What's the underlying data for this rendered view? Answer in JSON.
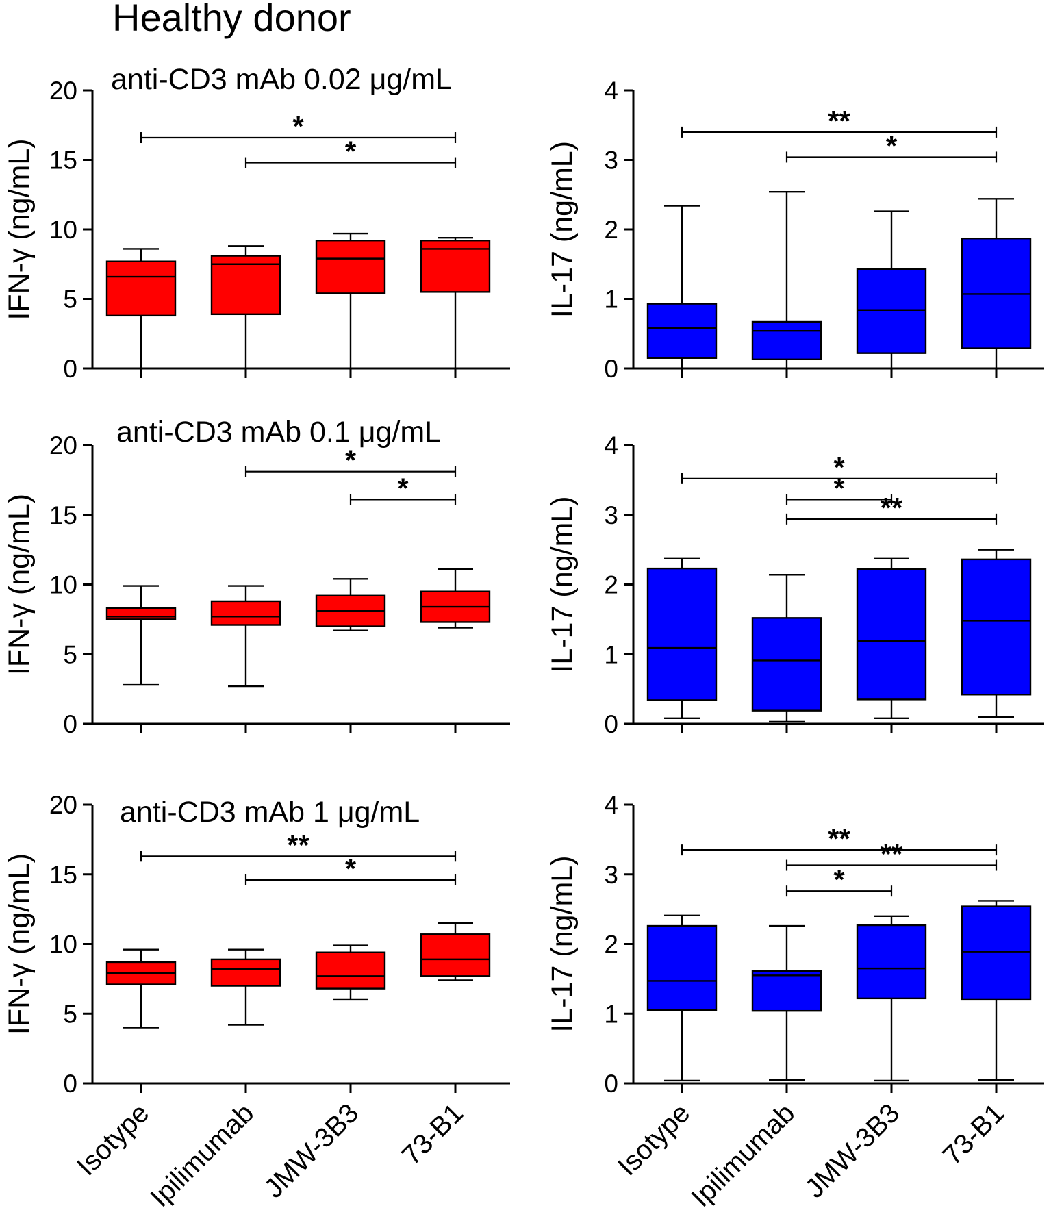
{
  "figure": {
    "title": "Healthy donor",
    "categories": [
      "Isotype",
      "Ipilimumab",
      "JMW-3B3",
      "73-B1"
    ],
    "colors": {
      "ifng": "#ff0000",
      "il17": "#0000ff",
      "stroke": "#000000"
    }
  },
  "chart_data": [
    {
      "type": "box",
      "panel": "IFN-γ at anti-CD3 0.02 µg/mL",
      "title": "anti-CD3 mAb 0.02 μg/mL",
      "ylabel": "IFN-γ (ng/mL)",
      "ylim": [
        0,
        20
      ],
      "yticks": [
        0,
        5,
        10,
        15,
        20
      ],
      "color": "#ff0000",
      "categories": [
        "Isotype",
        "Ipilimumab",
        "JMW-3B3",
        "73-B1"
      ],
      "boxes": [
        {
          "min": 0,
          "q1": 3.8,
          "median": 6.6,
          "q3": 7.7,
          "max": 8.6
        },
        {
          "min": 0,
          "q1": 3.9,
          "median": 7.5,
          "q3": 8.1,
          "max": 8.8
        },
        {
          "min": 0,
          "q1": 5.4,
          "median": 7.9,
          "q3": 9.2,
          "max": 9.7
        },
        {
          "min": 0,
          "q1": 5.5,
          "median": 8.6,
          "q3": 9.2,
          "max": 9.4
        }
      ],
      "significance": [
        {
          "from": 0,
          "to": 3,
          "y": 16.6,
          "label": "*"
        },
        {
          "from": 1,
          "to": 3,
          "y": 14.8,
          "label": "*"
        }
      ]
    },
    {
      "type": "box",
      "panel": "IL-17 at anti-CD3 0.02 µg/mL",
      "title": "",
      "ylabel": "IL-17 (ng/mL)",
      "ylim": [
        0,
        4
      ],
      "yticks": [
        0,
        1,
        2,
        3,
        4
      ],
      "color": "#0000ff",
      "categories": [
        "Isotype",
        "Ipilimumab",
        "JMW-3B3",
        "73-B1"
      ],
      "boxes": [
        {
          "min": 0,
          "q1": 0.15,
          "median": 0.58,
          "q3": 0.93,
          "max": 2.34
        },
        {
          "min": 0,
          "q1": 0.13,
          "median": 0.54,
          "q3": 0.67,
          "max": 2.54
        },
        {
          "min": 0,
          "q1": 0.22,
          "median": 0.84,
          "q3": 1.43,
          "max": 2.26
        },
        {
          "min": 0,
          "q1": 0.29,
          "median": 1.07,
          "q3": 1.87,
          "max": 2.44
        }
      ],
      "significance": [
        {
          "from": 0,
          "to": 3,
          "y": 3.4,
          "label": "**"
        },
        {
          "from": 1,
          "to": 3,
          "y": 3.04,
          "label": "*"
        }
      ]
    },
    {
      "type": "box",
      "panel": "IFN-γ at anti-CD3 0.1 µg/mL",
      "title": "anti-CD3 mAb 0.1 μg/mL",
      "ylabel": "IFN-γ (ng/mL)",
      "ylim": [
        0,
        20
      ],
      "yticks": [
        0,
        5,
        10,
        15,
        20
      ],
      "color": "#ff0000",
      "categories": [
        "Isotype",
        "Ipilimumab",
        "JMW-3B3",
        "73-B1"
      ],
      "boxes": [
        {
          "min": 2.8,
          "q1": 7.5,
          "median": 7.7,
          "q3": 8.3,
          "max": 9.9
        },
        {
          "min": 2.7,
          "q1": 7.1,
          "median": 7.7,
          "q3": 8.8,
          "max": 9.9
        },
        {
          "min": 6.7,
          "q1": 7.0,
          "median": 8.1,
          "q3": 9.2,
          "max": 10.4
        },
        {
          "min": 6.9,
          "q1": 7.3,
          "median": 8.4,
          "q3": 9.5,
          "max": 11.1
        }
      ],
      "significance": [
        {
          "from": 1,
          "to": 3,
          "y": 18.1,
          "label": "*"
        },
        {
          "from": 2,
          "to": 3,
          "y": 16.1,
          "label": "*"
        }
      ]
    },
    {
      "type": "box",
      "panel": "IL-17 at anti-CD3 0.1 µg/mL",
      "title": "",
      "ylabel": "IL-17 (ng/mL)",
      "ylim": [
        0,
        4
      ],
      "yticks": [
        0,
        1,
        2,
        3,
        4
      ],
      "color": "#0000ff",
      "categories": [
        "Isotype",
        "Ipilimumab",
        "JMW-3B3",
        "73-B1"
      ],
      "boxes": [
        {
          "min": 0.08,
          "q1": 0.34,
          "median": 1.09,
          "q3": 2.23,
          "max": 2.37
        },
        {
          "min": 0.03,
          "q1": 0.19,
          "median": 0.91,
          "q3": 1.52,
          "max": 2.14
        },
        {
          "min": 0.08,
          "q1": 0.35,
          "median": 1.19,
          "q3": 2.22,
          "max": 2.37
        },
        {
          "min": 0.1,
          "q1": 0.42,
          "median": 1.48,
          "q3": 2.36,
          "max": 2.5
        }
      ],
      "significance": [
        {
          "from": 0,
          "to": 3,
          "y": 3.52,
          "label": "*"
        },
        {
          "from": 1,
          "to": 2,
          "y": 3.22,
          "label": "*"
        },
        {
          "from": 1,
          "to": 3,
          "y": 2.94,
          "label": "**"
        }
      ]
    },
    {
      "type": "box",
      "panel": "IFN-γ at anti-CD3 1 µg/mL",
      "title": "anti-CD3 mAb 1 μg/mL",
      "ylabel": "IFN-γ (ng/mL)",
      "ylim": [
        0,
        20
      ],
      "yticks": [
        0,
        5,
        10,
        15,
        20
      ],
      "color": "#ff0000",
      "categories": [
        "Isotype",
        "Ipilimumab",
        "JMW-3B3",
        "73-B1"
      ],
      "boxes": [
        {
          "min": 4.0,
          "q1": 7.1,
          "median": 7.9,
          "q3": 8.7,
          "max": 9.6
        },
        {
          "min": 4.2,
          "q1": 7.0,
          "median": 8.2,
          "q3": 8.9,
          "max": 9.6
        },
        {
          "min": 6.0,
          "q1": 6.8,
          "median": 7.7,
          "q3": 9.4,
          "max": 9.9
        },
        {
          "min": 7.4,
          "q1": 7.7,
          "median": 8.9,
          "q3": 10.7,
          "max": 11.5
        }
      ],
      "significance": [
        {
          "from": 0,
          "to": 3,
          "y": 16.3,
          "label": "**"
        },
        {
          "from": 1,
          "to": 3,
          "y": 14.6,
          "label": "*"
        }
      ]
    },
    {
      "type": "box",
      "panel": "IL-17 at anti-CD3 1 µg/mL",
      "title": "",
      "ylabel": "IL-17 (ng/mL)",
      "ylim": [
        0,
        4
      ],
      "yticks": [
        0,
        1,
        2,
        3,
        4
      ],
      "color": "#0000ff",
      "categories": [
        "Isotype",
        "Ipilimumab",
        "JMW-3B3",
        "73-B1"
      ],
      "boxes": [
        {
          "min": 0.04,
          "q1": 1.05,
          "median": 1.47,
          "q3": 2.26,
          "max": 2.41
        },
        {
          "min": 0.05,
          "q1": 1.04,
          "median": 1.55,
          "q3": 1.61,
          "max": 2.26
        },
        {
          "min": 0.04,
          "q1": 1.22,
          "median": 1.65,
          "q3": 2.27,
          "max": 2.4
        },
        {
          "min": 0.05,
          "q1": 1.2,
          "median": 1.89,
          "q3": 2.54,
          "max": 2.62
        }
      ],
      "significance": [
        {
          "from": 0,
          "to": 3,
          "y": 3.35,
          "label": "**"
        },
        {
          "from": 1,
          "to": 3,
          "y": 3.13,
          "label": "**"
        },
        {
          "from": 1,
          "to": 2,
          "y": 2.76,
          "label": "*"
        }
      ]
    }
  ]
}
